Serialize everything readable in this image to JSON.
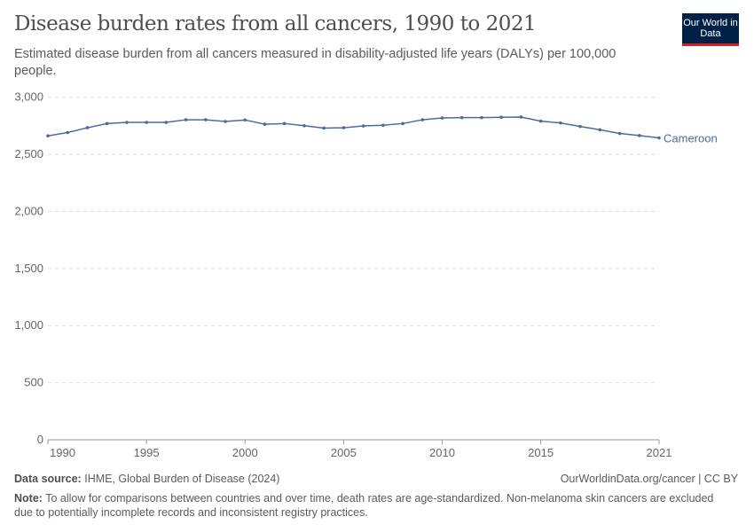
{
  "header": {
    "title": "Disease burden rates from all cancers, 1990 to 2021",
    "subtitle": "Estimated disease burden from all cancers measured in disability-adjusted life years (DALYs) per 100,000 people.",
    "logo": "Our World in Data"
  },
  "footer": {
    "source_label": "Data source:",
    "source": "IHME, Global Burden of Disease (2024)",
    "url": "OurWorldinData.org/cancer | CC BY",
    "note_label": "Note:",
    "note": "To allow for comparisons between countries and over time, death rates are age-standardized. Non-melanoma skin cancers are excluded due to potentially incomplete records and inconsistent registry practices."
  },
  "chart_data": {
    "type": "line",
    "title": "Disease burden rates from all cancers, 1990 to 2021",
    "xlim": [
      1990,
      2021
    ],
    "ylim": [
      0,
      3000
    ],
    "grid": true,
    "x_ticks": [
      1990,
      1995,
      2000,
      2005,
      2010,
      2015,
      2021
    ],
    "y_ticks": [
      0,
      500,
      1000,
      1500,
      2000,
      2500,
      3000
    ],
    "y_tick_labels": [
      "0",
      "500",
      "1,000",
      "1,500",
      "2,000",
      "2,500",
      "3,000"
    ],
    "series": [
      {
        "name": "Cameroon",
        "color": "#4c6a9c",
        "x": [
          1990,
          1991,
          1992,
          1993,
          1994,
          1995,
          1996,
          1997,
          1998,
          1999,
          2000,
          2001,
          2002,
          2003,
          2004,
          2005,
          2006,
          2007,
          2008,
          2009,
          2010,
          2011,
          2012,
          2013,
          2014,
          2015,
          2016,
          2017,
          2018,
          2019,
          2020,
          2021
        ],
        "values": [
          2662,
          2691,
          2733,
          2770,
          2780,
          2780,
          2780,
          2803,
          2803,
          2788,
          2801,
          2764,
          2770,
          2751,
          2730,
          2733,
          2749,
          2755,
          2770,
          2803,
          2819,
          2822,
          2822,
          2825,
          2827,
          2791,
          2775,
          2744,
          2715,
          2683,
          2665,
          2644
        ]
      }
    ]
  }
}
